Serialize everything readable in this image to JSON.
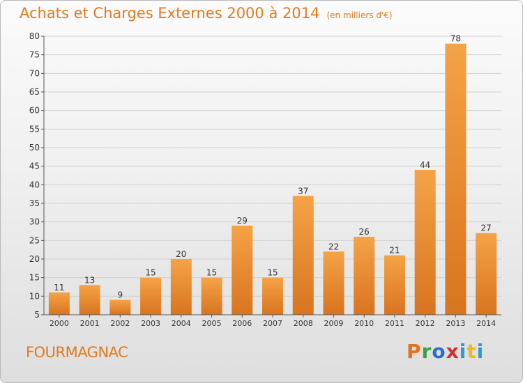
{
  "header": {
    "title": "Achats et Charges Externes 2000 à 2014",
    "subtitle": "(en milliers d'€)"
  },
  "footer": {
    "commune": "FOURMAGNAC",
    "logo": [
      "P",
      "r",
      "o",
      "x",
      "i",
      "t",
      "i"
    ]
  },
  "colors": {
    "bar": "#f39a3c",
    "bar_dark": "#d9741f",
    "title": "#e07a1f",
    "grid": "#d0d0d0"
  },
  "chart_data": {
    "type": "bar",
    "title": "Achats et Charges Externes 2000 à 2014",
    "subtitle": "(en milliers d'€)",
    "categories": [
      "2000",
      "2001",
      "2002",
      "2003",
      "2004",
      "2005",
      "2006",
      "2007",
      "2008",
      "2009",
      "2010",
      "2011",
      "2012",
      "2013",
      "2014"
    ],
    "values": [
      11,
      13,
      9,
      15,
      20,
      15,
      29,
      15,
      37,
      22,
      26,
      21,
      44,
      78,
      27
    ],
    "ylim": [
      5,
      80
    ],
    "yticks": [
      5,
      10,
      15,
      20,
      25,
      30,
      35,
      40,
      45,
      50,
      55,
      60,
      65,
      70,
      75,
      80
    ],
    "grid": true,
    "data_labels": true
  }
}
